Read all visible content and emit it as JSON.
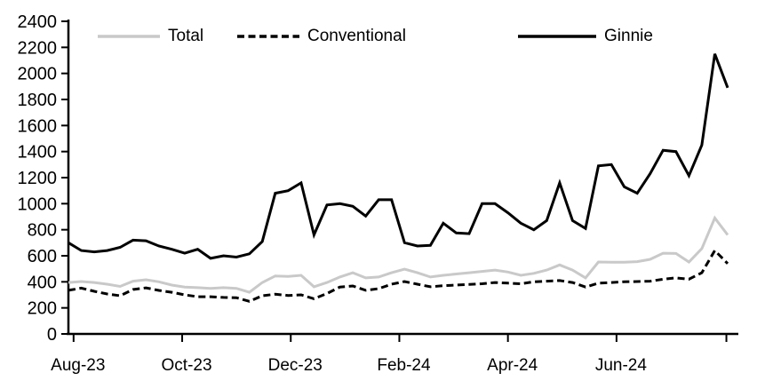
{
  "legend": [
    {
      "label": "Total",
      "color": "#c9c9c9",
      "dash": "",
      "swatch_icon": "line-solid-gray"
    },
    {
      "label": "Conventional",
      "color": "#000000",
      "dash": "8 4.5",
      "swatch_icon": "line-dashed-black"
    },
    {
      "label": "Ginnie",
      "color": "#000000",
      "dash": "",
      "swatch_icon": "line-solid-black"
    }
  ],
  "chart_data": {
    "type": "line",
    "title": "",
    "xlabel": "",
    "ylabel": "",
    "x_unit": "week",
    "ylim": [
      0,
      2400
    ],
    "y_tick_step": 200,
    "grid": false,
    "legend_position": "top",
    "axis_color": "#000000",
    "x_ticks": [
      {
        "label": "Aug-23",
        "pos": 0.4
      },
      {
        "label": "Oct-23",
        "pos": 8.8
      },
      {
        "label": "Dec-23",
        "pos": 17.2
      },
      {
        "label": "Feb-24",
        "pos": 25.6
      },
      {
        "label": "Apr-24",
        "pos": 34.0
      },
      {
        "label": "Jun-24",
        "pos": 42.4
      },
      {
        "label": "",
        "pos": 50.9
      }
    ],
    "series": [
      {
        "name": "Total",
        "color": "#c9c9c9",
        "dash": "",
        "width": 3,
        "values": [
          395,
          402,
          395,
          382,
          365,
          405,
          416,
          400,
          375,
          360,
          355,
          350,
          355,
          350,
          320,
          395,
          445,
          442,
          450,
          362,
          395,
          437,
          470,
          430,
          437,
          470,
          498,
          470,
          437,
          450,
          460,
          470,
          480,
          490,
          475,
          450,
          465,
          490,
          530,
          490,
          430,
          552,
          550,
          550,
          555,
          573,
          620,
          618,
          552,
          655,
          890,
          760
        ]
      },
      {
        "name": "Conventional",
        "color": "#000000",
        "dash": "8 4.5",
        "width": 3,
        "values": [
          335,
          352,
          327,
          307,
          293,
          341,
          354,
          334,
          320,
          300,
          286,
          286,
          280,
          278,
          250,
          293,
          305,
          295,
          300,
          270,
          310,
          360,
          368,
          335,
          348,
          382,
          402,
          382,
          362,
          370,
          375,
          380,
          385,
          395,
          390,
          385,
          400,
          405,
          410,
          395,
          360,
          390,
          395,
          400,
          402,
          405,
          420,
          430,
          420,
          470,
          640,
          540
        ]
      },
      {
        "name": "Ginnie",
        "color": "#000000",
        "dash": "",
        "width": 3,
        "values": [
          700,
          640,
          630,
          640,
          665,
          720,
          715,
          675,
          650,
          620,
          650,
          580,
          600,
          590,
          615,
          710,
          1080,
          1100,
          1160,
          760,
          990,
          1000,
          980,
          905,
          1030,
          1030,
          700,
          675,
          680,
          850,
          775,
          770,
          1000,
          1000,
          930,
          850,
          800,
          870,
          1160,
          870,
          810,
          1290,
          1300,
          1130,
          1080,
          1230,
          1410,
          1400,
          1215,
          1450,
          2150,
          1890
        ]
      }
    ]
  }
}
